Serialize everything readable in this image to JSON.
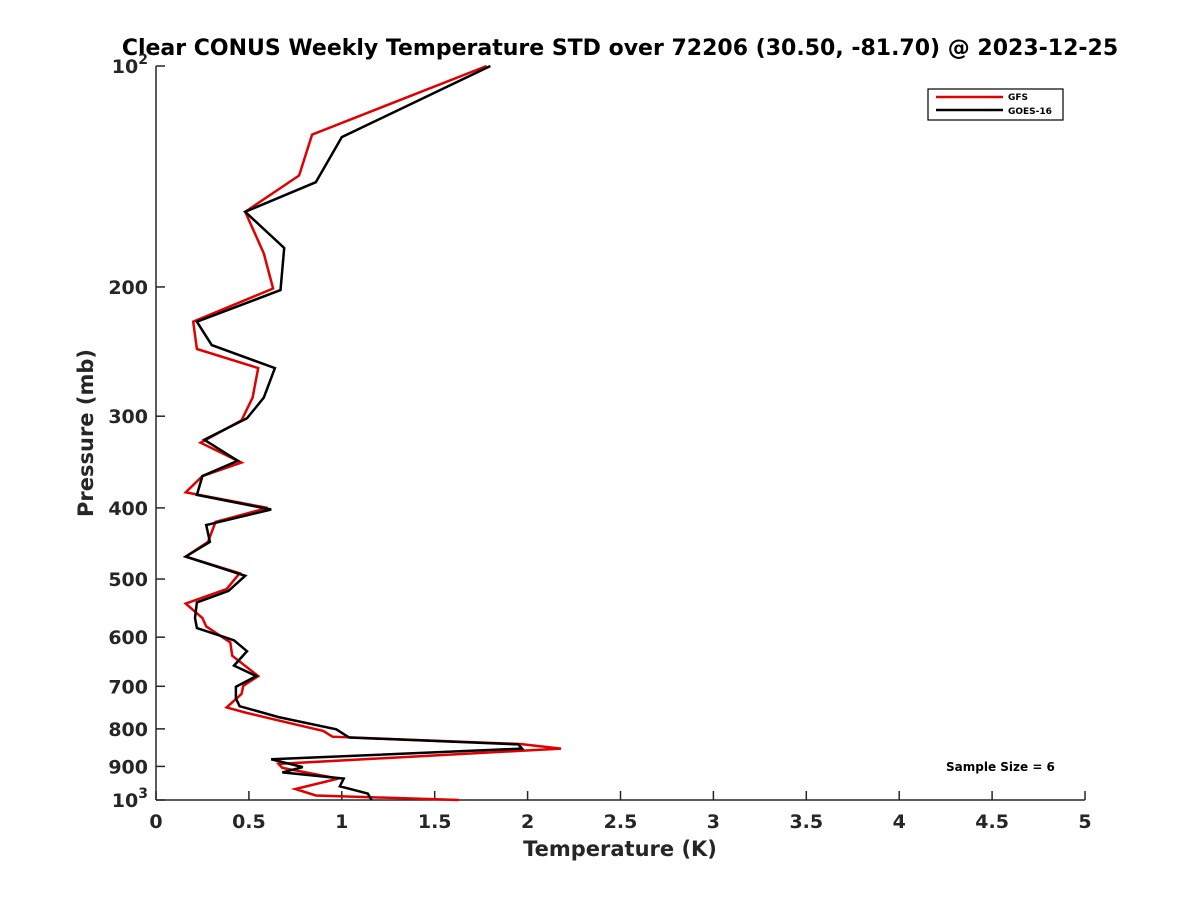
{
  "chart_data": {
    "type": "line",
    "title": "Clear CONUS Weekly Temperature STD over 72206 (30.50, -81.70) @ 2023-12-25",
    "xlabel": "Temperature (K)",
    "ylabel": "Pressure (mb)",
    "xlim": [
      0,
      5
    ],
    "ylim": [
      100,
      1000
    ],
    "y_scale": "log",
    "y_reversed": true,
    "x_ticks": [
      "0",
      "0.5",
      "1",
      "1.5",
      "2",
      "2.5",
      "3",
      "3.5",
      "4",
      "4.5",
      "5"
    ],
    "y_ticks": [
      {
        "value": 100,
        "base": "10",
        "exp": "2"
      },
      {
        "value": 200,
        "label": "200"
      },
      {
        "value": 300,
        "label": "300"
      },
      {
        "value": 400,
        "label": "400"
      },
      {
        "value": 500,
        "label": "500"
      },
      {
        "value": 600,
        "label": "600"
      },
      {
        "value": 700,
        "label": "700"
      },
      {
        "value": 800,
        "label": "800"
      },
      {
        "value": 900,
        "label": "900"
      },
      {
        "value": 1000,
        "base": "10",
        "exp": "3"
      }
    ],
    "grid": false,
    "legend_position": "top-right",
    "annotation": "Sample Size = 6",
    "series": [
      {
        "name": "GFS",
        "color": "#e00000",
        "points": [
          [
            1.78,
            100
          ],
          [
            0.84,
            124
          ],
          [
            0.77,
            141
          ],
          [
            0.48,
            158
          ],
          [
            0.58,
            180
          ],
          [
            0.63,
            201
          ],
          [
            0.2,
            223
          ],
          [
            0.22,
            243
          ],
          [
            0.55,
            258
          ],
          [
            0.52,
            283
          ],
          [
            0.46,
            304
          ],
          [
            0.24,
            326
          ],
          [
            0.46,
            347
          ],
          [
            0.25,
            362
          ],
          [
            0.16,
            381
          ],
          [
            0.6,
            400
          ],
          [
            0.32,
            418
          ],
          [
            0.28,
            445
          ],
          [
            0.16,
            466
          ],
          [
            0.45,
            491
          ],
          [
            0.38,
            516
          ],
          [
            0.16,
            540
          ],
          [
            0.25,
            565
          ],
          [
            0.27,
            580
          ],
          [
            0.4,
            610
          ],
          [
            0.41,
            636
          ],
          [
            0.55,
            678
          ],
          [
            0.47,
            699
          ],
          [
            0.46,
            717
          ],
          [
            0.38,
            748
          ],
          [
            0.48,
            760
          ],
          [
            0.63,
            776
          ],
          [
            0.9,
            805
          ],
          [
            0.95,
            820
          ],
          [
            1.96,
            839
          ],
          [
            2.18,
            851
          ],
          [
            0.66,
            893
          ],
          [
            0.68,
            904
          ],
          [
            0.98,
            935
          ],
          [
            0.75,
            966
          ],
          [
            0.86,
            986
          ],
          [
            1.63,
            1000
          ]
        ]
      },
      {
        "name": "GOES-16",
        "color": "#000000",
        "points": [
          [
            1.8,
            100
          ],
          [
            1.0,
            125
          ],
          [
            0.86,
            144
          ],
          [
            0.48,
            158
          ],
          [
            0.69,
            177
          ],
          [
            0.67,
            202
          ],
          [
            0.22,
            223
          ],
          [
            0.3,
            240
          ],
          [
            0.64,
            258
          ],
          [
            0.58,
            283
          ],
          [
            0.49,
            302
          ],
          [
            0.26,
            323
          ],
          [
            0.44,
            345
          ],
          [
            0.25,
            362
          ],
          [
            0.22,
            384
          ],
          [
            0.62,
            402
          ],
          [
            0.27,
            422
          ],
          [
            0.29,
            445
          ],
          [
            0.16,
            466
          ],
          [
            0.48,
            495
          ],
          [
            0.39,
            519
          ],
          [
            0.22,
            538
          ],
          [
            0.21,
            565
          ],
          [
            0.22,
            583
          ],
          [
            0.42,
            606
          ],
          [
            0.49,
            627
          ],
          [
            0.42,
            656
          ],
          [
            0.54,
            678
          ],
          [
            0.43,
            701
          ],
          [
            0.43,
            727
          ],
          [
            0.45,
            745
          ],
          [
            0.66,
            771
          ],
          [
            0.97,
            801
          ],
          [
            1.04,
            822
          ],
          [
            1.95,
            840
          ],
          [
            1.97,
            851
          ],
          [
            0.62,
            880
          ],
          [
            0.79,
            902
          ],
          [
            0.68,
            917
          ],
          [
            1.01,
            935
          ],
          [
            0.99,
            958
          ],
          [
            1.14,
            980
          ],
          [
            1.16,
            1000
          ]
        ]
      }
    ]
  }
}
